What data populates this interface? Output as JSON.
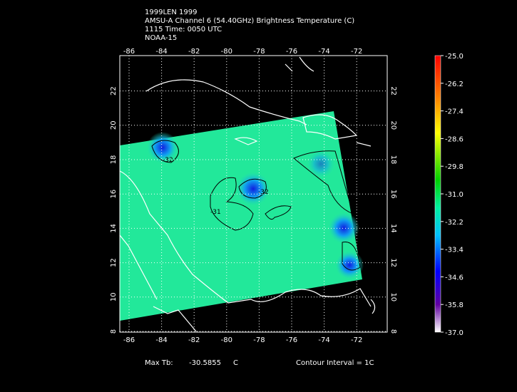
{
  "header": [
    "1999LEN 1999",
    "AMSU-A Channel 6 (54.40GHz) Brightness Temperature (C)",
    "1115 Time: 0050 UTC",
    "NOAA-15"
  ],
  "longitude_ticks": [
    -86,
    -84,
    -82,
    -80,
    -78,
    -76,
    -74,
    -72
  ],
  "latitude_ticks": [
    22,
    20,
    18,
    16,
    14,
    12,
    10,
    8
  ],
  "contour_labels": [
    "-32",
    "-31",
    "-32"
  ],
  "colorbar_labels": [
    "-25.0",
    "-26.2",
    "-27.4",
    "-28.6",
    "-29.8",
    "-31.0",
    "-32.2",
    "-33.4",
    "-34.6",
    "-35.8",
    "-37.0"
  ],
  "footer": {
    "max_label": "Max Tb:",
    "max_value": "-30.5855",
    "unit": "C",
    "contour_interval": "Contour Interval = 1C"
  }
}
